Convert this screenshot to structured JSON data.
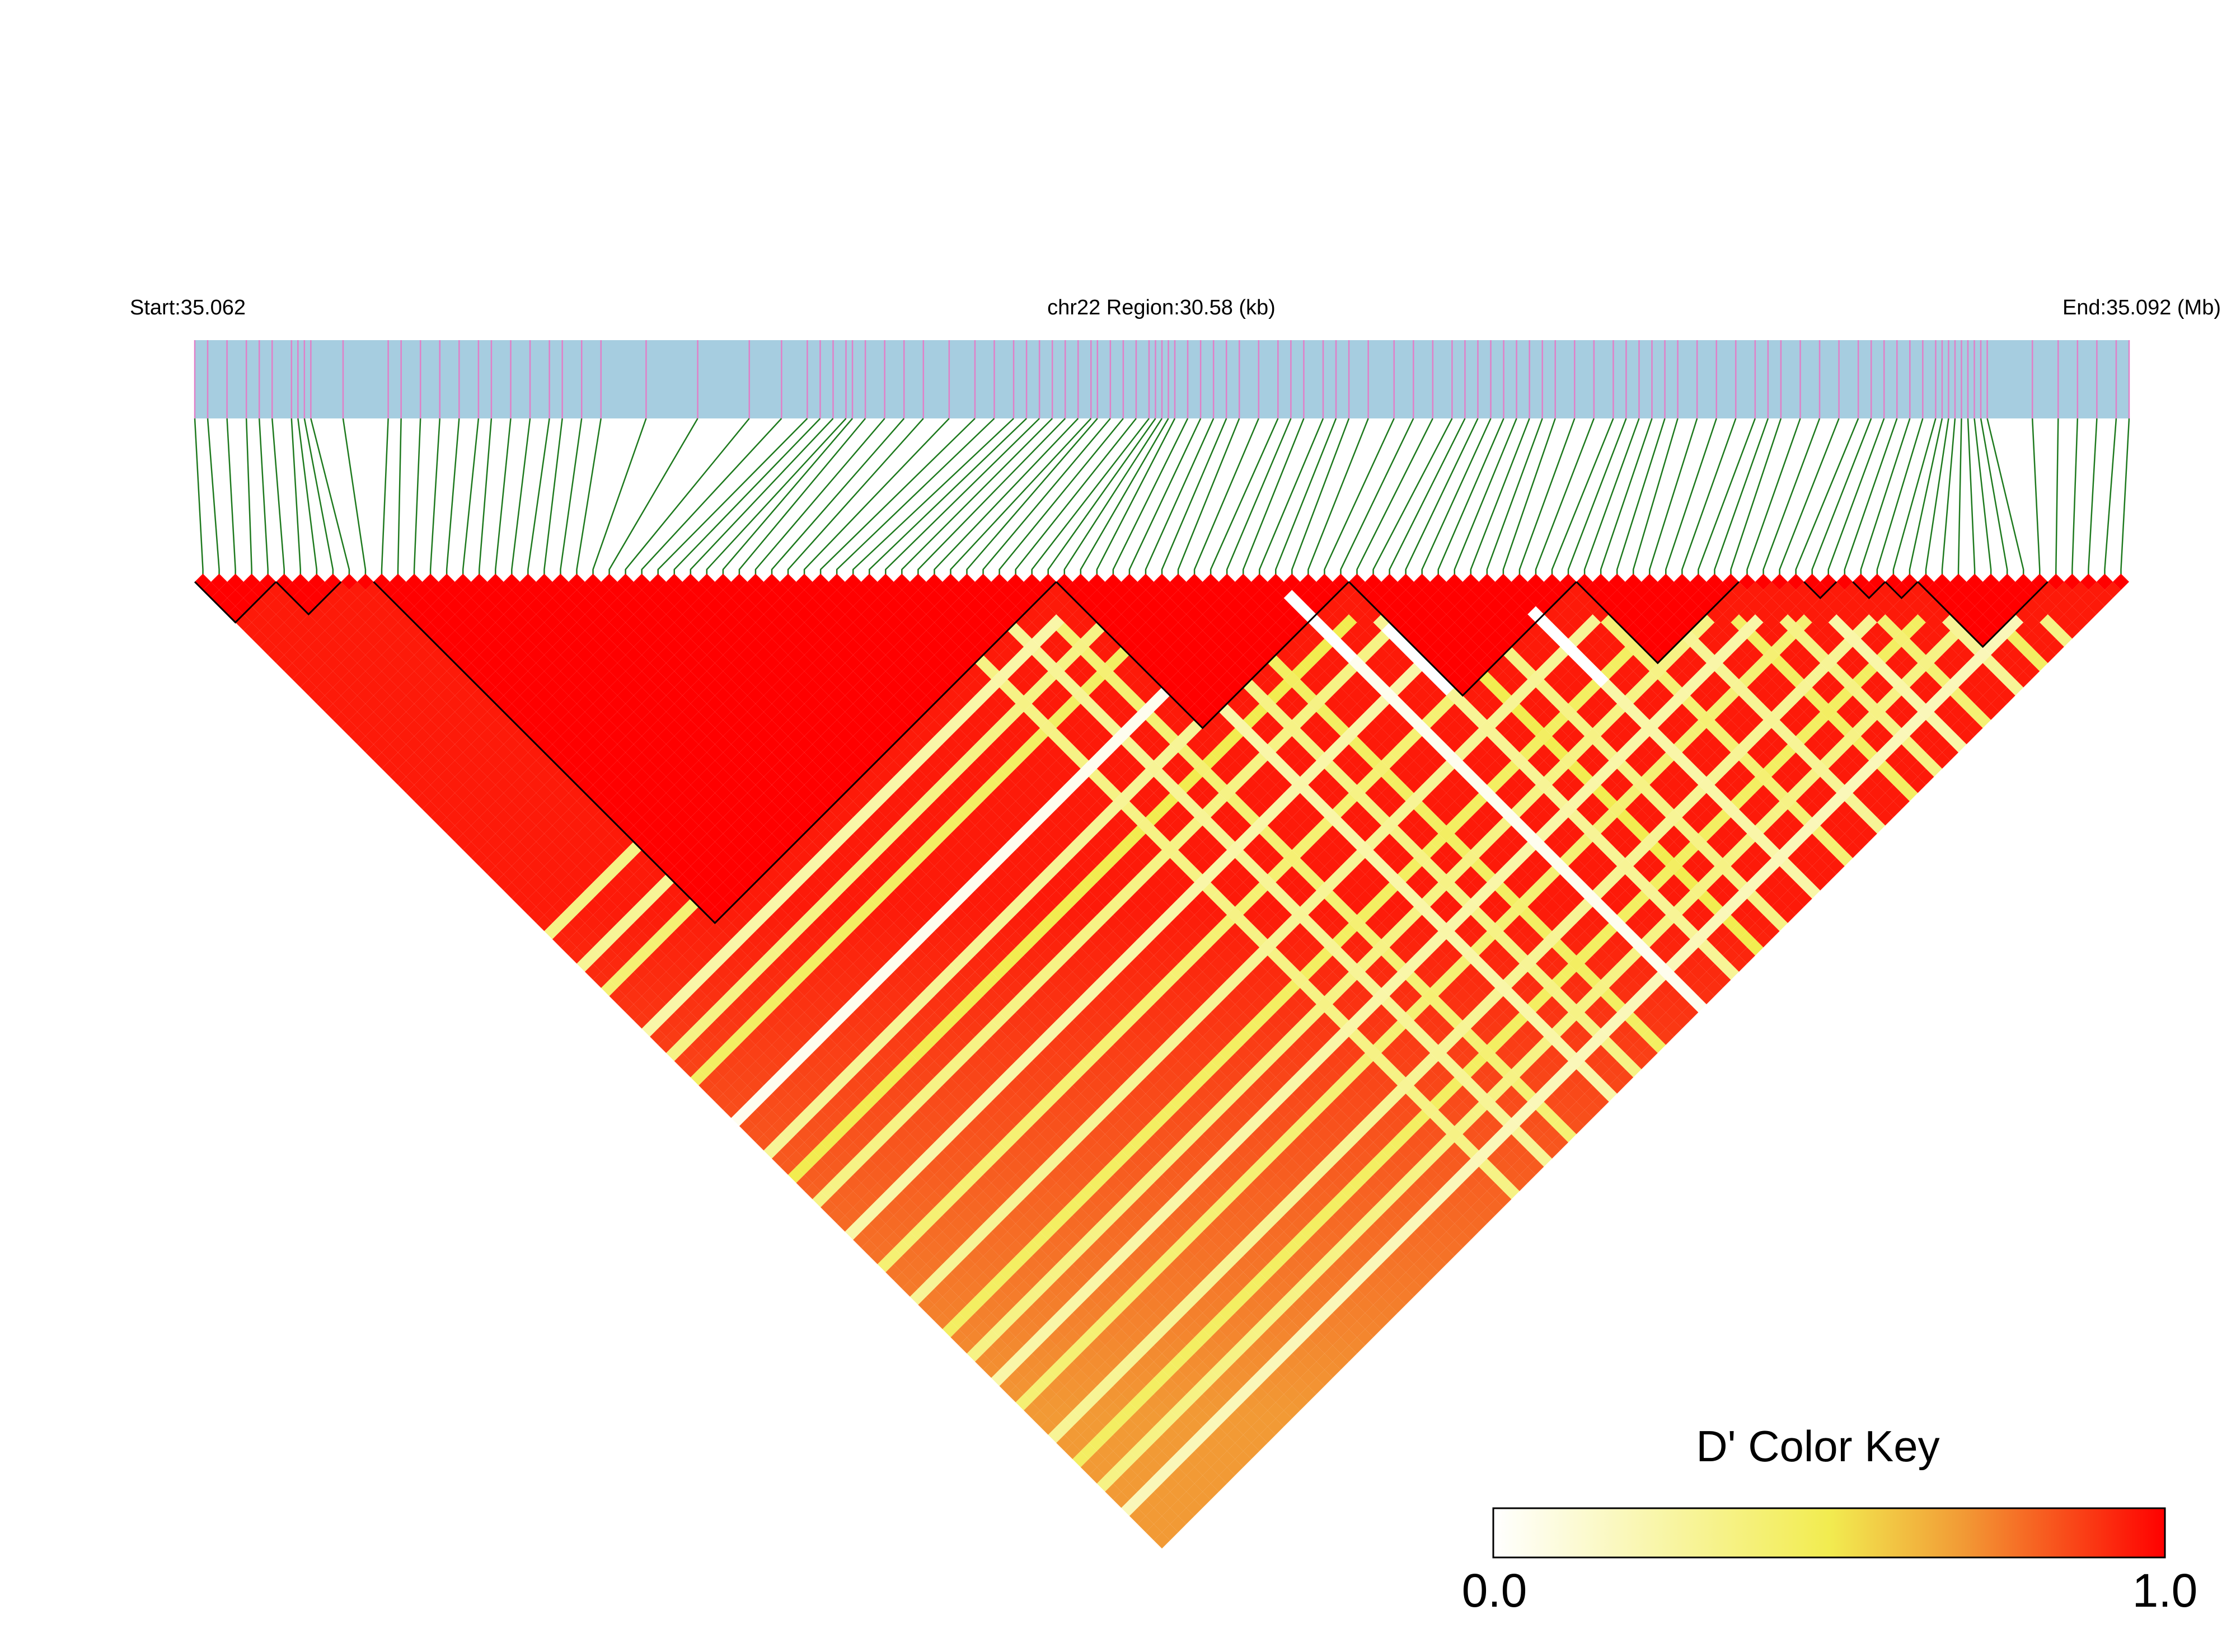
{
  "chart_data": {
    "type": "heatmap",
    "subtype": "linkage-disequilibrium-triangle",
    "header": {
      "start_label": "Start:35.062",
      "region_label": "chr22 Region:30.58 (kb)",
      "end_label": "End:35.092 (Mb)"
    },
    "region": {
      "chromosome": "chr22",
      "start_mb": 35.062,
      "end_mb": 35.092,
      "length_kb": 30.58
    },
    "snp_count": 119,
    "snp_positions_mb": [
      35.062,
      35.0622,
      35.0625,
      35.0628,
      35.063,
      35.0632,
      35.0635,
      35.0636,
      35.0637,
      35.0638,
      35.0643,
      35.065,
      35.0652,
      35.0655,
      35.0658,
      35.0661,
      35.0664,
      35.0666,
      35.0669,
      35.0672,
      35.0675,
      35.0677,
      35.068,
      35.0683,
      35.069,
      35.0698,
      35.0706,
      35.0711,
      35.0715,
      35.0717,
      35.0719,
      35.0721,
      35.0722,
      35.0724,
      35.0727,
      35.073,
      35.0733,
      35.0737,
      35.0741,
      35.0744,
      35.0747,
      35.0749,
      35.0751,
      35.0753,
      35.0755,
      35.0757,
      35.0759,
      35.076,
      35.0762,
      35.0764,
      35.0766,
      35.0768,
      35.0769,
      35.077,
      35.0771,
      35.0772,
      35.0774,
      35.0776,
      35.0778,
      35.078,
      35.0782,
      35.0785,
      35.0788,
      35.079,
      35.0792,
      35.0795,
      35.0797,
      35.0799,
      35.0802,
      35.0806,
      35.0809,
      35.0812,
      35.0815,
      35.0817,
      35.0819,
      35.0821,
      35.0823,
      35.0825,
      35.0827,
      35.0829,
      35.0831,
      35.0834,
      35.0837,
      35.084,
      35.0842,
      35.0844,
      35.0846,
      35.0848,
      35.085,
      35.0853,
      35.0856,
      35.0859,
      35.0862,
      35.0864,
      35.0866,
      35.0869,
      35.0872,
      35.0875,
      35.0878,
      35.088,
      35.0882,
      35.0884,
      35.0886,
      35.0888,
      35.089,
      35.0891,
      35.0892,
      35.0893,
      35.0894,
      35.0895,
      35.0896,
      35.0897,
      35.0898,
      35.0905,
      35.0909,
      35.0912,
      35.0915,
      35.0918,
      35.092
    ],
    "ld_blocks": [
      {
        "first_snp": 0,
        "last_snp": 4
      },
      {
        "first_snp": 5,
        "last_snp": 8
      },
      {
        "first_snp": 11,
        "last_snp": 52
      },
      {
        "first_snp": 53,
        "last_snp": 70
      },
      {
        "first_snp": 71,
        "last_snp": 84
      },
      {
        "first_snp": 85,
        "last_snp": 94
      },
      {
        "first_snp": 99,
        "last_snp": 100
      },
      {
        "first_snp": 102,
        "last_snp": 103
      },
      {
        "first_snp": 104,
        "last_snp": 105
      },
      {
        "first_snp": 106,
        "last_snp": 113
      }
    ],
    "ld_pattern": {
      "metric": "D'",
      "base_dprime": 0.95,
      "low_dprime_snp_lines": [
        {
          "snp": 43,
          "dprime": 0.35
        },
        {
          "snp": 47,
          "dprime": 0.3
        },
        {
          "snp": 50,
          "dprime": 0.4
        },
        {
          "snp": 55,
          "dprime": 0.25
        },
        {
          "snp": 58,
          "dprime": 0.35
        },
        {
          "snp": 61,
          "dprime": 0.45
        },
        {
          "snp": 66,
          "dprime": 0.05
        },
        {
          "snp": 70,
          "dprime": 0.3
        },
        {
          "snp": 73,
          "dprime": 0.5
        },
        {
          "snp": 76,
          "dprime": 0.35
        },
        {
          "snp": 80,
          "dprime": 0.25
        },
        {
          "snp": 84,
          "dprime": 0.4
        },
        {
          "snp": 88,
          "dprime": 0.3
        },
        {
          "snp": 92,
          "dprime": 0.45
        },
        {
          "snp": 95,
          "dprime": 0.35
        },
        {
          "snp": 98,
          "dprime": 0.25
        },
        {
          "snp": 101,
          "dprime": 0.4
        },
        {
          "snp": 105,
          "dprime": 0.3
        },
        {
          "snp": 108,
          "dprime": 0.45
        },
        {
          "snp": 111,
          "dprime": 0.35
        },
        {
          "snp": 114,
          "dprime": 0.2
        }
      ],
      "zero_dprime_segments": [
        {
          "snp": 66,
          "from_snp": 68,
          "to_snp": 75
        },
        {
          "snp": 80,
          "from_snp": 84,
          "to_snp": 92
        },
        {
          "snp": 70,
          "from_snp": 76,
          "to_snp": 83
        }
      ]
    },
    "color_key": {
      "title": "D' Color Key",
      "min_label": "0.0",
      "max_label": "1.0",
      "min": 0.0,
      "max": 1.0,
      "stops": [
        "#ffffff",
        "#f2ec50",
        "#f29a35",
        "#ff0000"
      ]
    },
    "colors": {
      "gene_track": "#a6cde0",
      "snp_tick": "#e080c8",
      "connector": "#1e7a1e",
      "block_outline": "#000000"
    }
  }
}
